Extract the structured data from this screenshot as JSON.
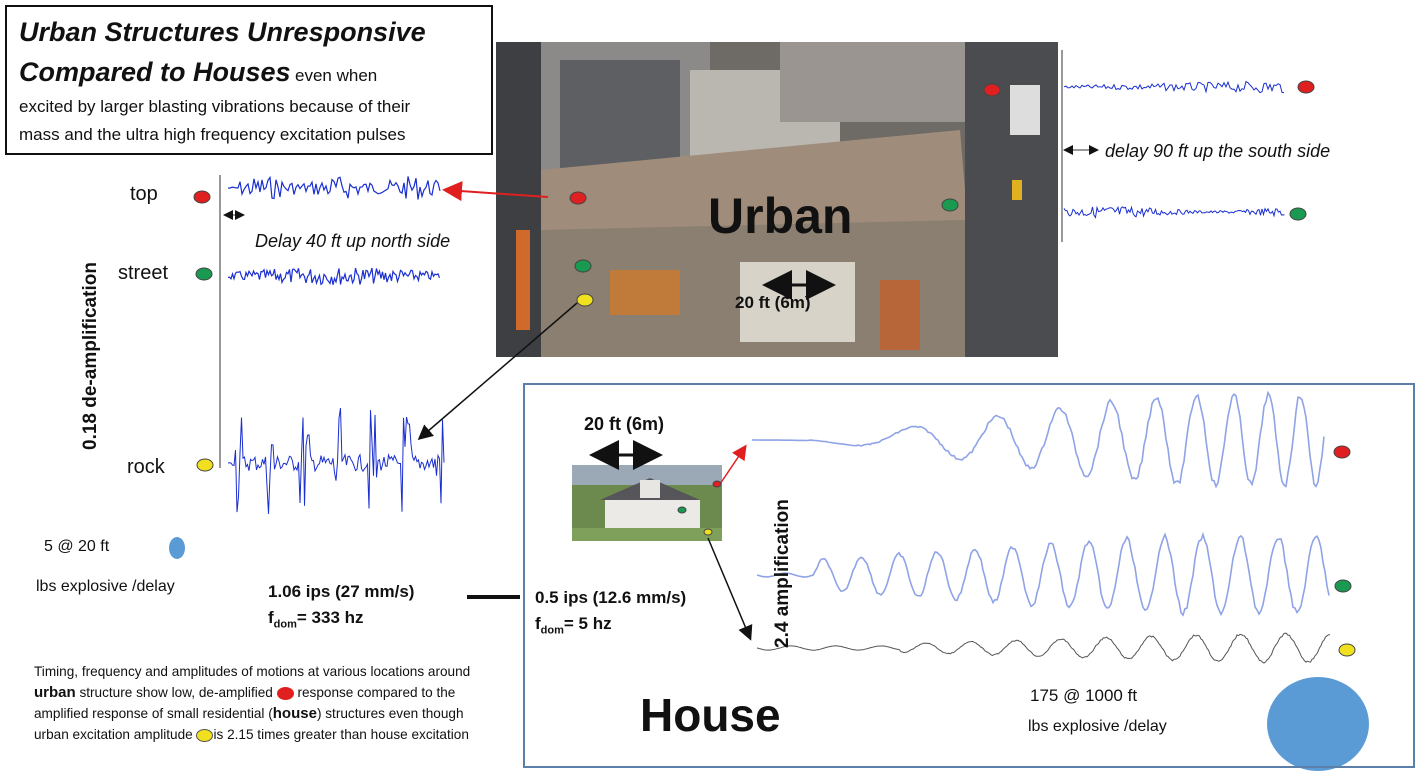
{
  "header": {
    "title_line1": "Urban Structures Unresponsive",
    "title_line2": "Compared to Houses",
    "subtitle_lines": [
      "even when",
      "excited by larger blasting vibrations because of their",
      "mass and the ultra high frequency excitation pulses"
    ]
  },
  "urban": {
    "label": "Urban",
    "scale": "20 ft (6m)",
    "levels": [
      "top",
      "street",
      "rock"
    ],
    "deamplification": "0.18 de-amplification",
    "north_delay": "Delay 40 ft up north side",
    "south_delay": "delay 90 ft up the south side",
    "charge": "5 @ 20 ft",
    "charge_unit": "lbs explosive /delay",
    "ppv": "1.06 ips (27 mm/s)",
    "freq_symbol": "f",
    "freq_sub": "dom",
    "freq_value": "= 333 hz"
  },
  "house": {
    "label": "House",
    "scale": "20 ft (6m)",
    "amplification": "2.4 amplification",
    "charge": "175 @ 1000 ft",
    "charge_unit": "lbs explosive /delay",
    "ppv": "0.5 ips (12.6 mm/s)",
    "freq_symbol": "f",
    "freq_sub": "dom",
    "freq_value": "= 5 hz"
  },
  "note": {
    "parts": [
      "Timing, frequency and amplitudes of motions at various locations around",
      "urban",
      "structure show low, de-amplified",
      "response   compared to the amplified response of small residential (",
      "house",
      ") structures even though urban excitation amplitude",
      "is 2.15 times greater than house excitation"
    ]
  }
}
